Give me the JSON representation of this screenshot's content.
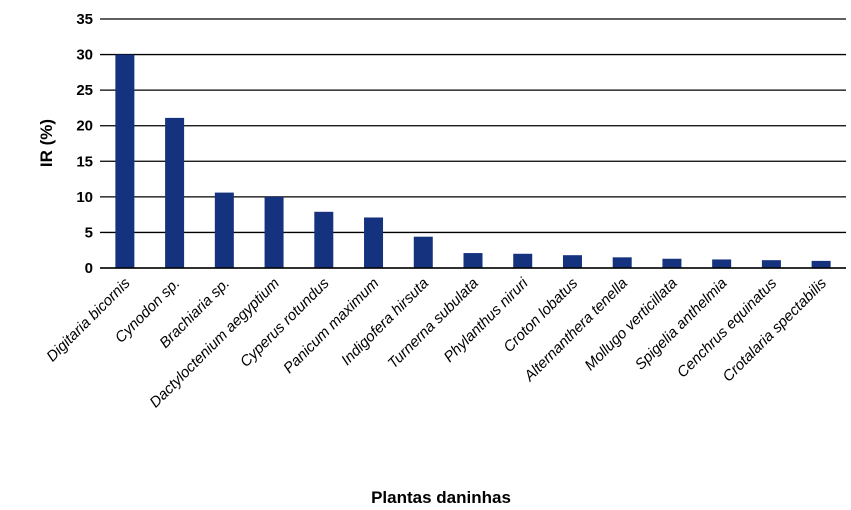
{
  "chart_data": {
    "type": "bar",
    "xlabel": "Plantas daninhas",
    "ylabel": "IR (%)",
    "ylim": [
      0,
      35
    ],
    "yticks": [
      0,
      5,
      10,
      15,
      20,
      25,
      30,
      35
    ],
    "grid": true,
    "bar_color": "#15327f",
    "categories": [
      "Digitaria bicornis",
      "Cynodon sp.",
      "Brachiaria sp.",
      "Dactyloctenium aegyptium",
      "Cyperus rotundus",
      "Panicum maximum",
      "Indigofera hirsuta",
      "Turnerna subulata",
      "Phylanthus niruri",
      "Croton lobatus",
      "Alternanthera tenella",
      "Mollugo verticillata",
      "Spigelia anthelmia",
      "Cenchrus equinatus",
      "Crotalaria spectabilis"
    ],
    "values": [
      30.0,
      21.1,
      10.6,
      10.0,
      7.9,
      7.1,
      4.4,
      2.1,
      2.0,
      1.8,
      1.5,
      1.3,
      1.2,
      1.1,
      1.0
    ]
  }
}
